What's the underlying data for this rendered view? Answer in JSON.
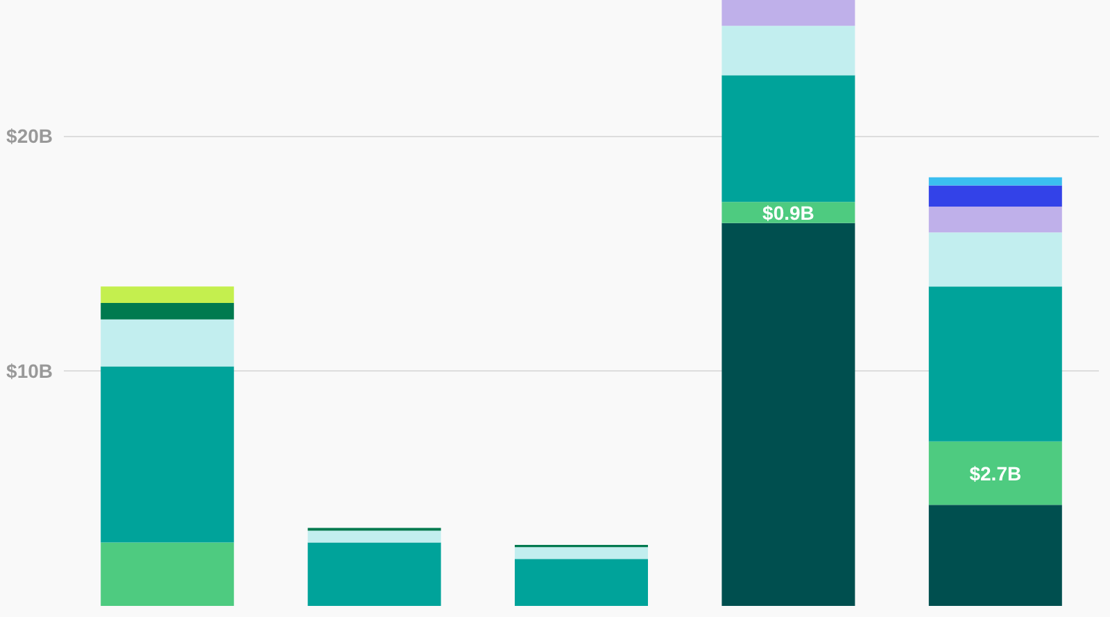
{
  "chart_data": {
    "type": "bar",
    "stacked": true,
    "categories": [
      null,
      null,
      null,
      null,
      null
    ],
    "series": [
      {
        "color": "#004f4f",
        "values": [
          null,
          null,
          null,
          16.3,
          4.3
        ]
      },
      {
        "color": "#4ecb80",
        "values": [
          2.7,
          null,
          null,
          0.9,
          2.7
        ],
        "value_labels": [
          null,
          null,
          null,
          "$0.9B",
          "$2.7B"
        ]
      },
      {
        "color": "#00a39a",
        "values": [
          7.5,
          2.7,
          2.0,
          5.4,
          6.6
        ]
      },
      {
        "color": "#c2eeef",
        "values": [
          2.0,
          0.5,
          0.5,
          2.1,
          2.3
        ]
      },
      {
        "color": "#bfb0ea",
        "values": [
          null,
          null,
          null,
          1.1,
          1.1
        ]
      },
      {
        "color": "#3342e8",
        "values": [
          null,
          null,
          null,
          null,
          0.9
        ]
      },
      {
        "color": "#3bbef0",
        "values": [
          null,
          null,
          null,
          null,
          0.35
        ]
      },
      {
        "color": "#007a4f",
        "values": [
          0.7,
          0.12,
          0.1,
          null,
          null
        ]
      },
      {
        "color": "#c4ef4e",
        "values": [
          0.7,
          null,
          null,
          null,
          null
        ]
      }
    ],
    "ylim": [
      0,
      25.8
    ],
    "yticks": [
      {
        "value": 10,
        "label": "$10B"
      },
      {
        "value": 20,
        "label": "$20B"
      }
    ],
    "grid": "y"
  }
}
